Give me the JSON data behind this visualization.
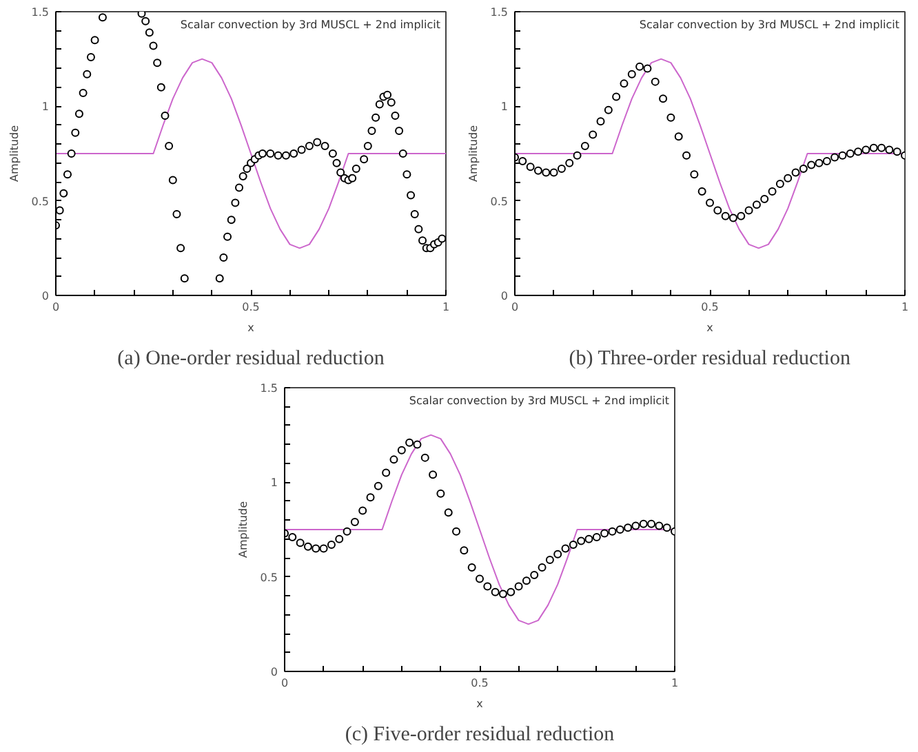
{
  "chart_data": [
    {
      "type": "line",
      "title": "Scalar convection by 3rd MUSCL + 2nd implicit",
      "annotations": [
        "(a) One-order residual reduction"
      ],
      "xlabel": "x",
      "ylabel": "Amplitude",
      "xlim": [
        0,
        1
      ],
      "ylim": [
        0,
        1.5
      ],
      "xticks": [
        0,
        {
          "value": 0.1,
          "label": null
        },
        {
          "value": 0.2,
          "label": null
        },
        {
          "value": 0.3,
          "label": null
        },
        {
          "value": 0.4,
          "label": null
        },
        0.5,
        {
          "value": 0.6,
          "label": null
        },
        {
          "value": 0.7,
          "label": null
        },
        {
          "value": 0.8,
          "label": null
        },
        {
          "value": 0.9,
          "label": null
        },
        1
      ],
      "yticks": [
        0,
        {
          "value": 0.1,
          "label": null
        },
        {
          "value": 0.2,
          "label": null
        },
        {
          "value": 0.3,
          "label": null
        },
        {
          "value": 0.4,
          "label": null
        },
        0.5,
        {
          "value": 0.6,
          "label": null
        },
        {
          "value": 0.7,
          "label": null
        },
        {
          "value": 0.8,
          "label": null
        },
        {
          "value": 0.9,
          "label": null
        },
        1,
        {
          "value": 1.1,
          "label": null
        },
        {
          "value": 1.2,
          "label": null
        },
        {
          "value": 1.3,
          "label": null
        },
        {
          "value": 1.4,
          "label": null
        },
        1.5
      ],
      "grid": false,
      "series": [
        {
          "color": "#cc66cc",
          "line_style": "solid",
          "x": [
            0,
            0.25,
            0.275,
            0.3,
            0.325,
            0.35,
            0.375,
            0.4,
            0.425,
            0.45,
            0.475,
            0.5,
            0.525,
            0.55,
            0.575,
            0.6,
            0.625,
            0.65,
            0.675,
            0.7,
            0.725,
            0.75,
            1
          ],
          "values": [
            0.75,
            0.75,
            0.9,
            1.04,
            1.15,
            1.23,
            1.25,
            1.23,
            1.15,
            1.04,
            0.9,
            0.75,
            0.6,
            0.46,
            0.35,
            0.27,
            0.25,
            0.27,
            0.35,
            0.46,
            0.6,
            0.75,
            0.75
          ]
        },
        {
          "type": "scatter",
          "marker": "circle",
          "color": "#000000",
          "x": [
            0,
            0.01,
            0.02,
            0.03,
            0.04,
            0.05,
            0.06,
            0.07,
            0.08,
            0.09,
            0.1,
            0.12,
            0.22,
            0.23,
            0.24,
            0.25,
            0.26,
            0.27,
            0.28,
            0.29,
            0.3,
            0.31,
            0.32,
            0.33,
            0.42,
            0.43,
            0.44,
            0.45,
            0.46,
            0.47,
            0.48,
            0.49,
            0.5,
            0.51,
            0.52,
            0.53,
            0.55,
            0.57,
            0.59,
            0.61,
            0.63,
            0.65,
            0.67,
            0.69,
            0.71,
            0.72,
            0.73,
            0.74,
            0.75,
            0.76,
            0.77,
            0.79,
            0.8,
            0.81,
            0.82,
            0.83,
            0.84,
            0.85,
            0.86,
            0.87,
            0.88,
            0.89,
            0.9,
            0.91,
            0.92,
            0.93,
            0.94,
            0.95,
            0.96,
            0.97,
            0.98,
            0.99
          ],
          "values": [
            0.37,
            0.45,
            0.54,
            0.64,
            0.75,
            0.86,
            0.96,
            1.07,
            1.17,
            1.26,
            1.35,
            1.47,
            1.49,
            1.45,
            1.39,
            1.32,
            1.23,
            1.1,
            0.95,
            0.79,
            0.61,
            0.43,
            0.25,
            0.09,
            0.09,
            0.2,
            0.31,
            0.4,
            0.49,
            0.57,
            0.63,
            0.67,
            0.7,
            0.72,
            0.74,
            0.75,
            0.75,
            0.74,
            0.74,
            0.75,
            0.77,
            0.79,
            0.81,
            0.79,
            0.75,
            0.7,
            0.65,
            0.62,
            0.61,
            0.62,
            0.67,
            0.72,
            0.79,
            0.87,
            0.94,
            1.01,
            1.05,
            1.06,
            1.02,
            0.95,
            0.87,
            0.75,
            0.64,
            0.53,
            0.43,
            0.35,
            0.29,
            0.25,
            0.25,
            0.27,
            0.28,
            0.3
          ]
        }
      ]
    },
    {
      "type": "line",
      "title": "Scalar convection by 3rd MUSCL + 2nd implicit",
      "annotations": [
        "(b) Three-order residual reduction"
      ],
      "xlabel": "x",
      "ylabel": "Amplitude",
      "xlim": [
        0,
        1
      ],
      "ylim": [
        0,
        1.5
      ],
      "xticks": [
        0,
        {
          "value": 0.1,
          "label": null
        },
        {
          "value": 0.2,
          "label": null
        },
        {
          "value": 0.3,
          "label": null
        },
        {
          "value": 0.4,
          "label": null
        },
        0.5,
        {
          "value": 0.6,
          "label": null
        },
        {
          "value": 0.7,
          "label": null
        },
        {
          "value": 0.8,
          "label": null
        },
        {
          "value": 0.9,
          "label": null
        },
        1
      ],
      "yticks": [
        0,
        {
          "value": 0.1,
          "label": null
        },
        {
          "value": 0.2,
          "label": null
        },
        {
          "value": 0.3,
          "label": null
        },
        {
          "value": 0.4,
          "label": null
        },
        0.5,
        {
          "value": 0.6,
          "label": null
        },
        {
          "value": 0.7,
          "label": null
        },
        {
          "value": 0.8,
          "label": null
        },
        {
          "value": 0.9,
          "label": null
        },
        1,
        {
          "value": 1.1,
          "label": null
        },
        {
          "value": 1.2,
          "label": null
        },
        {
          "value": 1.3,
          "label": null
        },
        {
          "value": 1.4,
          "label": null
        },
        1.5
      ],
      "grid": false,
      "series": [
        {
          "color": "#cc66cc",
          "line_style": "solid",
          "x": [
            0,
            0.25,
            0.275,
            0.3,
            0.325,
            0.35,
            0.375,
            0.4,
            0.425,
            0.45,
            0.475,
            0.5,
            0.525,
            0.55,
            0.575,
            0.6,
            0.625,
            0.65,
            0.675,
            0.7,
            0.725,
            0.75,
            1
          ],
          "values": [
            0.75,
            0.75,
            0.9,
            1.04,
            1.15,
            1.23,
            1.25,
            1.23,
            1.15,
            1.04,
            0.9,
            0.75,
            0.6,
            0.46,
            0.35,
            0.27,
            0.25,
            0.27,
            0.35,
            0.46,
            0.6,
            0.75,
            0.75
          ]
        },
        {
          "type": "scatter",
          "marker": "circle",
          "color": "#000000",
          "x": [
            0,
            0.02,
            0.04,
            0.06,
            0.08,
            0.1,
            0.12,
            0.14,
            0.16,
            0.18,
            0.2,
            0.22,
            0.24,
            0.26,
            0.28,
            0.3,
            0.32,
            0.34,
            0.36,
            0.38,
            0.4,
            0.42,
            0.44,
            0.46,
            0.48,
            0.5,
            0.52,
            0.54,
            0.56,
            0.58,
            0.6,
            0.62,
            0.64,
            0.66,
            0.68,
            0.7,
            0.72,
            0.74,
            0.76,
            0.78,
            0.8,
            0.82,
            0.84,
            0.86,
            0.88,
            0.9,
            0.92,
            0.94,
            0.96,
            0.98,
            1
          ],
          "values": [
            0.73,
            0.71,
            0.68,
            0.66,
            0.65,
            0.65,
            0.67,
            0.7,
            0.74,
            0.79,
            0.85,
            0.92,
            0.98,
            1.05,
            1.12,
            1.17,
            1.21,
            1.2,
            1.13,
            1.04,
            0.94,
            0.84,
            0.74,
            0.64,
            0.55,
            0.49,
            0.45,
            0.42,
            0.41,
            0.42,
            0.45,
            0.48,
            0.51,
            0.55,
            0.59,
            0.62,
            0.65,
            0.67,
            0.69,
            0.7,
            0.71,
            0.73,
            0.74,
            0.75,
            0.76,
            0.77,
            0.78,
            0.78,
            0.77,
            0.76,
            0.74
          ]
        }
      ]
    },
    {
      "type": "line",
      "title": "Scalar convection by 3rd MUSCL + 2nd implicit",
      "annotations": [
        "(c) Five-order residual reduction"
      ],
      "xlabel": "x",
      "ylabel": "Amplitude",
      "xlim": [
        0,
        1
      ],
      "ylim": [
        0,
        1.5
      ],
      "xticks": [
        0,
        {
          "value": 0.1,
          "label": null
        },
        {
          "value": 0.2,
          "label": null
        },
        {
          "value": 0.3,
          "label": null
        },
        {
          "value": 0.4,
          "label": null
        },
        0.5,
        {
          "value": 0.6,
          "label": null
        },
        {
          "value": 0.7,
          "label": null
        },
        {
          "value": 0.8,
          "label": null
        },
        {
          "value": 0.9,
          "label": null
        },
        1
      ],
      "yticks": [
        0,
        {
          "value": 0.1,
          "label": null
        },
        {
          "value": 0.2,
          "label": null
        },
        {
          "value": 0.3,
          "label": null
        },
        {
          "value": 0.4,
          "label": null
        },
        0.5,
        {
          "value": 0.6,
          "label": null
        },
        {
          "value": 0.7,
          "label": null
        },
        {
          "value": 0.8,
          "label": null
        },
        {
          "value": 0.9,
          "label": null
        },
        1,
        {
          "value": 1.1,
          "label": null
        },
        {
          "value": 1.2,
          "label": null
        },
        {
          "value": 1.3,
          "label": null
        },
        {
          "value": 1.4,
          "label": null
        },
        1.5
      ],
      "grid": false,
      "series": [
        {
          "color": "#cc66cc",
          "line_style": "solid",
          "x": [
            0,
            0.25,
            0.275,
            0.3,
            0.325,
            0.35,
            0.375,
            0.4,
            0.425,
            0.45,
            0.475,
            0.5,
            0.525,
            0.55,
            0.575,
            0.6,
            0.625,
            0.65,
            0.675,
            0.7,
            0.725,
            0.75,
            1
          ],
          "values": [
            0.75,
            0.75,
            0.9,
            1.04,
            1.15,
            1.23,
            1.25,
            1.23,
            1.15,
            1.04,
            0.9,
            0.75,
            0.6,
            0.46,
            0.35,
            0.27,
            0.25,
            0.27,
            0.35,
            0.46,
            0.6,
            0.75,
            0.75
          ]
        },
        {
          "type": "scatter",
          "marker": "circle",
          "color": "#000000",
          "x": [
            0,
            0.02,
            0.04,
            0.06,
            0.08,
            0.1,
            0.12,
            0.14,
            0.16,
            0.18,
            0.2,
            0.22,
            0.24,
            0.26,
            0.28,
            0.3,
            0.32,
            0.34,
            0.36,
            0.38,
            0.4,
            0.42,
            0.44,
            0.46,
            0.48,
            0.5,
            0.52,
            0.54,
            0.56,
            0.58,
            0.6,
            0.62,
            0.64,
            0.66,
            0.68,
            0.7,
            0.72,
            0.74,
            0.76,
            0.78,
            0.8,
            0.82,
            0.84,
            0.86,
            0.88,
            0.9,
            0.92,
            0.94,
            0.96,
            0.98,
            1
          ],
          "values": [
            0.73,
            0.71,
            0.68,
            0.66,
            0.65,
            0.65,
            0.67,
            0.7,
            0.74,
            0.79,
            0.85,
            0.92,
            0.98,
            1.05,
            1.12,
            1.17,
            1.21,
            1.2,
            1.13,
            1.04,
            0.94,
            0.84,
            0.74,
            0.64,
            0.55,
            0.49,
            0.45,
            0.42,
            0.41,
            0.42,
            0.45,
            0.48,
            0.51,
            0.55,
            0.59,
            0.62,
            0.65,
            0.67,
            0.69,
            0.7,
            0.71,
            0.73,
            0.74,
            0.75,
            0.76,
            0.77,
            0.78,
            0.78,
            0.77,
            0.76,
            0.74
          ]
        }
      ]
    }
  ]
}
